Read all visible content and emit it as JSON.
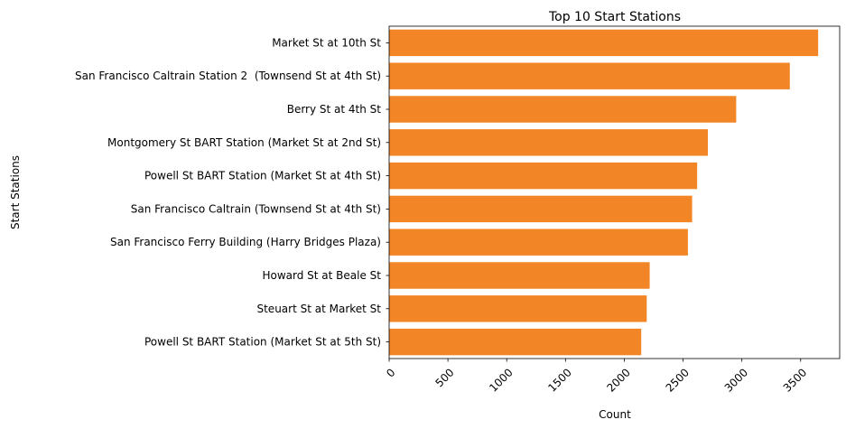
{
  "chart_data": {
    "type": "bar",
    "orientation": "horizontal",
    "title": "Top 10 Start Stations",
    "xlabel": "Count",
    "ylabel": "Start Stations",
    "categories": [
      "Market St at 10th St",
      "San Francisco Caltrain Station 2  (Townsend St at 4th St)",
      "Berry St at 4th St",
      "Montgomery St BART Station (Market St at 2nd St)",
      "Powell St BART Station (Market St at 4th St)",
      "San Francisco Caltrain (Townsend St at 4th St)",
      "San Francisco Ferry Building (Harry Bridges Plaza)",
      "Howard St at Beale St",
      "Steuart St at Market St",
      "Powell St BART Station (Market St at 5th St)"
    ],
    "values": [
      3649,
      3408,
      2952,
      2711,
      2620,
      2577,
      2541,
      2216,
      2191,
      2144
    ],
    "xlim": [
      0,
      3832
    ],
    "xticks": [
      "0",
      "500",
      "1000",
      "1500",
      "2000",
      "2500",
      "3000",
      "3500"
    ],
    "xtick_rotation": 45,
    "grid": false,
    "legend": "none",
    "bar_color": "#f28627"
  }
}
